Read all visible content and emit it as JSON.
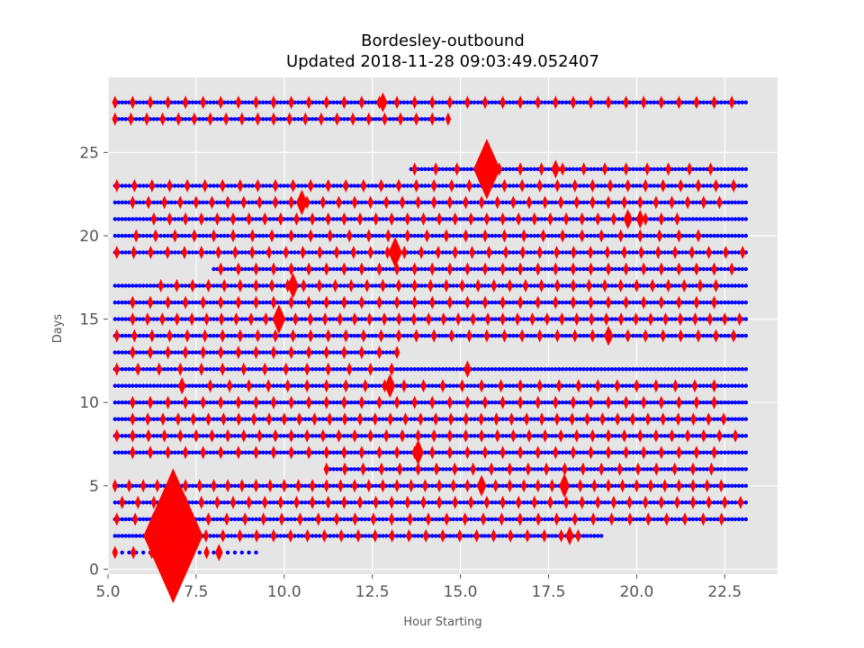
{
  "chart_data": {
    "type": "scatter",
    "title": "Bordesley-outbound",
    "subtitle": "Updated 2018-11-28 09:03:49.052407",
    "xlabel": "Hour Starting",
    "ylabel": "Days",
    "xlim": [
      5.0,
      24.0
    ],
    "ylim": [
      -0.3,
      29.5
    ],
    "xticks": [
      5.0,
      7.5,
      10.0,
      12.5,
      15.0,
      17.5,
      20.0,
      22.5
    ],
    "xtick_labels": [
      "5.0",
      "7.5",
      "10.0",
      "12.5",
      "15.0",
      "17.5",
      "20.0",
      "22.5"
    ],
    "yticks": [
      0,
      5,
      10,
      15,
      20,
      25
    ],
    "ytick_labels": [
      "0",
      "5",
      "10",
      "15",
      "20",
      "25"
    ],
    "grid": true,
    "legend": "none",
    "colors": {
      "background": "#e5e5e5",
      "grid": "#ffffff",
      "small_marker": "#0000ff",
      "delay_marker": "#ff0000"
    },
    "rows": [
      {
        "day": 1,
        "start": 5.2,
        "end": 9.2,
        "step": 0.2
      },
      {
        "day": 2,
        "start": 5.2,
        "end": 19.0,
        "step": 0.1
      },
      {
        "day": 3,
        "start": 5.2,
        "end": 23.1,
        "step": 0.1
      },
      {
        "day": 4,
        "start": 5.2,
        "end": 23.1,
        "step": 0.1
      },
      {
        "day": 5,
        "start": 5.2,
        "end": 23.1,
        "step": 0.1
      },
      {
        "day": 6,
        "start": 11.2,
        "end": 23.1,
        "step": 0.1
      },
      {
        "day": 7,
        "start": 5.2,
        "end": 23.1,
        "step": 0.1
      },
      {
        "day": 8,
        "start": 5.2,
        "end": 23.1,
        "step": 0.1
      },
      {
        "day": 9,
        "start": 5.2,
        "end": 23.1,
        "step": 0.1
      },
      {
        "day": 10,
        "start": 5.2,
        "end": 23.1,
        "step": 0.1
      },
      {
        "day": 11,
        "start": 5.2,
        "end": 23.1,
        "step": 0.1
      },
      {
        "day": 12,
        "start": 5.2,
        "end": 23.1,
        "step": 0.1
      },
      {
        "day": 13,
        "start": 5.2,
        "end": 13.2,
        "step": 0.1
      },
      {
        "day": 14,
        "start": 5.2,
        "end": 23.1,
        "step": 0.1
      },
      {
        "day": 15,
        "start": 5.2,
        "end": 23.1,
        "step": 0.1
      },
      {
        "day": 16,
        "start": 5.2,
        "end": 23.1,
        "step": 0.1
      },
      {
        "day": 17,
        "start": 5.2,
        "end": 23.1,
        "step": 0.1
      },
      {
        "day": 18,
        "start": 8.0,
        "end": 23.1,
        "step": 0.1
      },
      {
        "day": 19,
        "start": 5.2,
        "end": 23.1,
        "step": 0.1
      },
      {
        "day": 20,
        "start": 5.2,
        "end": 23.1,
        "step": 0.1
      },
      {
        "day": 21,
        "start": 5.2,
        "end": 23.1,
        "step": 0.1
      },
      {
        "day": 22,
        "start": 5.2,
        "end": 23.1,
        "step": 0.1
      },
      {
        "day": 23,
        "start": 5.2,
        "end": 23.1,
        "step": 0.1
      },
      {
        "day": 24,
        "start": 13.6,
        "end": 23.1,
        "step": 0.1
      },
      {
        "day": 27,
        "start": 5.2,
        "end": 14.5,
        "step": 0.1
      },
      {
        "day": 28,
        "start": 5.2,
        "end": 23.1,
        "step": 0.1
      }
    ],
    "delays": [
      {
        "x": 6.85,
        "y": 2,
        "size": 10
      },
      {
        "x": 15.75,
        "y": 24,
        "size": 4.5
      },
      {
        "x": 13.15,
        "y": 19,
        "size": 2.3
      },
      {
        "x": 9.85,
        "y": 15,
        "size": 2.2
      },
      {
        "x": 10.25,
        "y": 17,
        "size": 1.9
      },
      {
        "x": 10.5,
        "y": 22,
        "size": 1.9
      },
      {
        "x": 13.0,
        "y": 11,
        "size": 1.8
      },
      {
        "x": 13.8,
        "y": 7,
        "size": 1.9
      },
      {
        "x": 17.95,
        "y": 5,
        "size": 1.8
      },
      {
        "x": 15.6,
        "y": 5,
        "size": 1.6
      },
      {
        "x": 12.8,
        "y": 28,
        "size": 1.5
      },
      {
        "x": 19.75,
        "y": 21,
        "size": 1.5
      },
      {
        "x": 20.1,
        "y": 21,
        "size": 1.4
      },
      {
        "x": 19.2,
        "y": 14,
        "size": 1.5
      },
      {
        "x": 18.1,
        "y": 2,
        "size": 1.4
      },
      {
        "x": 17.7,
        "y": 24,
        "size": 1.4
      },
      {
        "x": 15.2,
        "y": 12,
        "size": 1.3
      },
      {
        "x": 8.15,
        "y": 1,
        "size": 1.3
      },
      {
        "x": 7.1,
        "y": 11,
        "size": 1.3
      }
    ],
    "delay_rows": [
      {
        "day": 1,
        "start": 5.2,
        "step": 0.52,
        "count": 6
      },
      {
        "day": 2,
        "start": 7.3,
        "step": 0.48,
        "count": 24
      },
      {
        "day": 3,
        "start": 5.25,
        "step": 0.52,
        "count": 34
      },
      {
        "day": 4,
        "start": 5.4,
        "step": 0.45,
        "count": 40
      },
      {
        "day": 5,
        "start": 5.2,
        "step": 0.4,
        "count": 44
      },
      {
        "day": 6,
        "start": 11.2,
        "step": 0.52,
        "count": 22
      },
      {
        "day": 7,
        "start": 5.7,
        "step": 0.5,
        "count": 34
      },
      {
        "day": 8,
        "start": 5.25,
        "step": 0.45,
        "count": 40
      },
      {
        "day": 9,
        "start": 5.7,
        "step": 0.43,
        "count": 40
      },
      {
        "day": 10,
        "start": 5.7,
        "step": 0.5,
        "count": 34
      },
      {
        "day": 11,
        "start": 7.9,
        "step": 0.55,
        "count": 27
      },
      {
        "day": 12,
        "start": 5.25,
        "step": 0.6,
        "count": 14
      },
      {
        "day": 13,
        "start": 5.7,
        "step": 0.5,
        "count": 16
      },
      {
        "day": 14,
        "start": 5.25,
        "step": 0.5,
        "count": 36
      },
      {
        "day": 15,
        "start": 5.7,
        "step": 0.42,
        "count": 42
      },
      {
        "day": 16,
        "start": 5.7,
        "step": 0.5,
        "count": 34
      },
      {
        "day": 17,
        "start": 6.5,
        "step": 0.45,
        "count": 36
      },
      {
        "day": 18,
        "start": 8.2,
        "step": 0.5,
        "count": 30
      },
      {
        "day": 19,
        "start": 5.25,
        "step": 0.48,
        "count": 38
      },
      {
        "day": 20,
        "start": 5.8,
        "step": 0.55,
        "count": 30
      },
      {
        "day": 21,
        "start": 6.3,
        "step": 0.45,
        "count": 34
      },
      {
        "day": 22,
        "start": 5.7,
        "step": 0.45,
        "count": 38
      },
      {
        "day": 23,
        "start": 5.25,
        "step": 0.5,
        "count": 36
      },
      {
        "day": 24,
        "start": 13.7,
        "step": 0.6,
        "count": 15
      },
      {
        "day": 27,
        "start": 5.2,
        "step": 0.45,
        "count": 22
      },
      {
        "day": 28,
        "start": 5.2,
        "step": 0.5,
        "count": 36
      }
    ]
  }
}
